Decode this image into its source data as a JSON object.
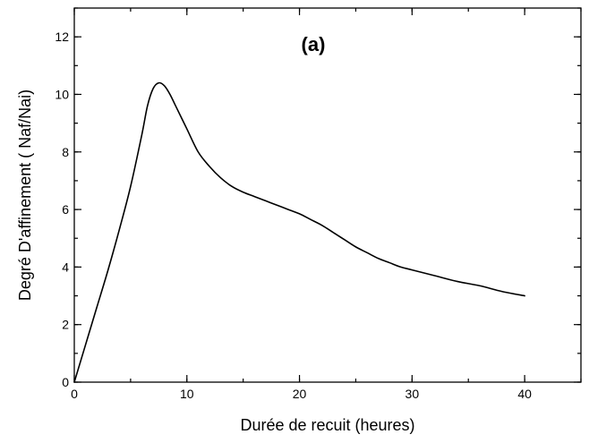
{
  "chart_data": {
    "type": "line",
    "xlabel": "Durée de recuit (heures)",
    "ylabel": "Degré D'affinement ( Naf/Nai)",
    "annotation": "(a)",
    "xlim": [
      0,
      45
    ],
    "ylim": [
      0,
      13
    ],
    "x_ticks": [
      0,
      10,
      20,
      30,
      40
    ],
    "x_tick_labels": [
      "0",
      "10",
      "20",
      "30",
      "40"
    ],
    "y_ticks": [
      0,
      2,
      4,
      6,
      8,
      10,
      12
    ],
    "y_tick_labels": [
      "0",
      "2",
      "4",
      "6",
      "8",
      "10",
      "12"
    ],
    "x_minor_step": 5,
    "y_minor_step": 1,
    "grid": false,
    "series": [
      {
        "color": "#000000",
        "x": [
          0,
          1,
          2,
          3,
          4,
          5,
          6,
          6.5,
          7,
          7.5,
          8,
          8.5,
          9,
          10,
          11,
          12,
          13,
          14,
          15,
          16,
          17,
          18,
          19,
          20,
          21,
          22,
          23,
          24,
          25,
          26,
          27,
          28,
          29,
          30,
          32,
          34,
          36,
          38,
          40
        ],
        "y": [
          0,
          1.3,
          2.6,
          3.9,
          5.3,
          6.8,
          8.6,
          9.6,
          10.2,
          10.4,
          10.3,
          10.0,
          9.6,
          8.8,
          8.0,
          7.5,
          7.1,
          6.8,
          6.6,
          6.45,
          6.3,
          6.15,
          6.0,
          5.85,
          5.65,
          5.45,
          5.2,
          4.95,
          4.7,
          4.5,
          4.3,
          4.15,
          4.0,
          3.9,
          3.7,
          3.5,
          3.35,
          3.15,
          3.0
        ]
      }
    ]
  }
}
